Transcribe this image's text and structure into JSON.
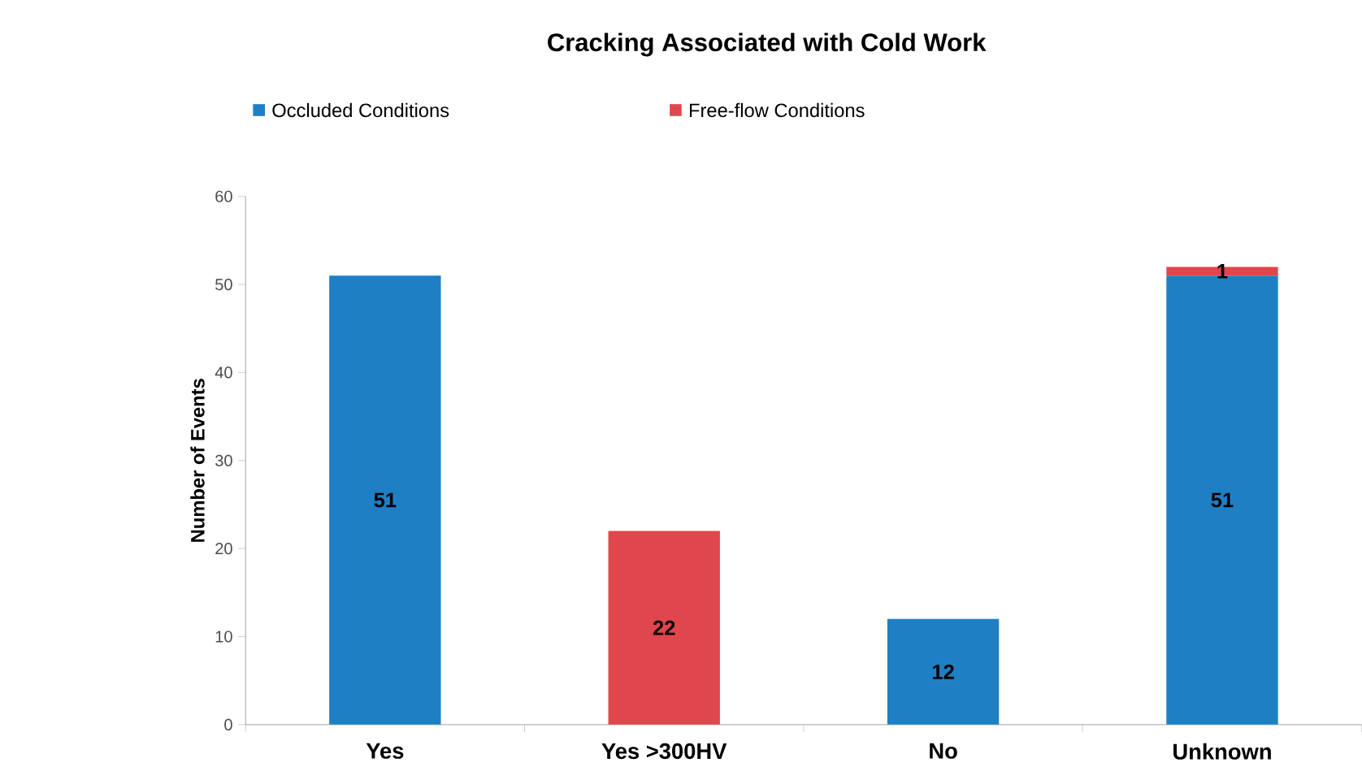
{
  "chart_data": {
    "type": "bar",
    "title": "Cracking Associated with Cold Work",
    "ylabel": "Number of Events",
    "stacked": true,
    "categories": [
      "Yes",
      "Yes >300HV",
      "No",
      "Unknown"
    ],
    "series": [
      {
        "name": "Occluded Conditions",
        "color": "#1f7fc4",
        "values": [
          51,
          null,
          12,
          51
        ],
        "value_labels": [
          "51",
          null,
          "12",
          "51"
        ]
      },
      {
        "name": "Free-flow Conditions",
        "color": "#e0474c",
        "values": [
          null,
          22,
          null,
          1
        ],
        "value_labels": [
          null,
          "22",
          null,
          "1"
        ]
      }
    ],
    "ylim": [
      0,
      60
    ],
    "yticks": [
      0,
      10,
      20,
      30,
      40,
      50,
      60
    ],
    "legend": "top"
  }
}
